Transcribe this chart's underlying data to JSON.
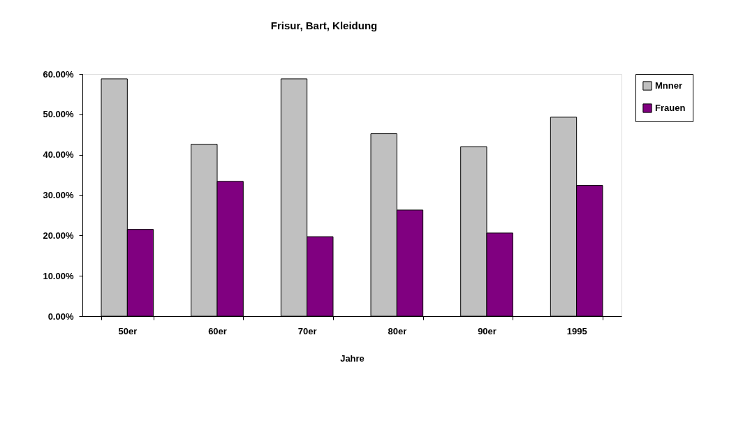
{
  "chart_data": {
    "type": "bar",
    "title": "Frisur, Bart, Kleidung",
    "xlabel": "Jahre",
    "categories": [
      "50er",
      "60er",
      "70er",
      "80er",
      "90er",
      "1995"
    ],
    "series": [
      {
        "name": "Mnner",
        "color": "#c0c0c0",
        "values": [
          58.8,
          42.6,
          58.8,
          45.2,
          42.0,
          49.3
        ]
      },
      {
        "name": "Frauen",
        "color": "#800080",
        "values": [
          21.5,
          33.4,
          19.7,
          26.3,
          20.6,
          32.4
        ]
      }
    ],
    "ylim": [
      0,
      60
    ],
    "yticks": [
      {
        "value": 0,
        "label": "0.00%"
      },
      {
        "value": 10,
        "label": "10.00%"
      },
      {
        "value": 20,
        "label": "20.00%"
      },
      {
        "value": 30,
        "label": "30.00%"
      },
      {
        "value": 40,
        "label": "40.00%"
      },
      {
        "value": 50,
        "label": "50.00%"
      },
      {
        "value": 60,
        "label": "60.00%"
      }
    ],
    "grid": false,
    "legend": "right"
  }
}
